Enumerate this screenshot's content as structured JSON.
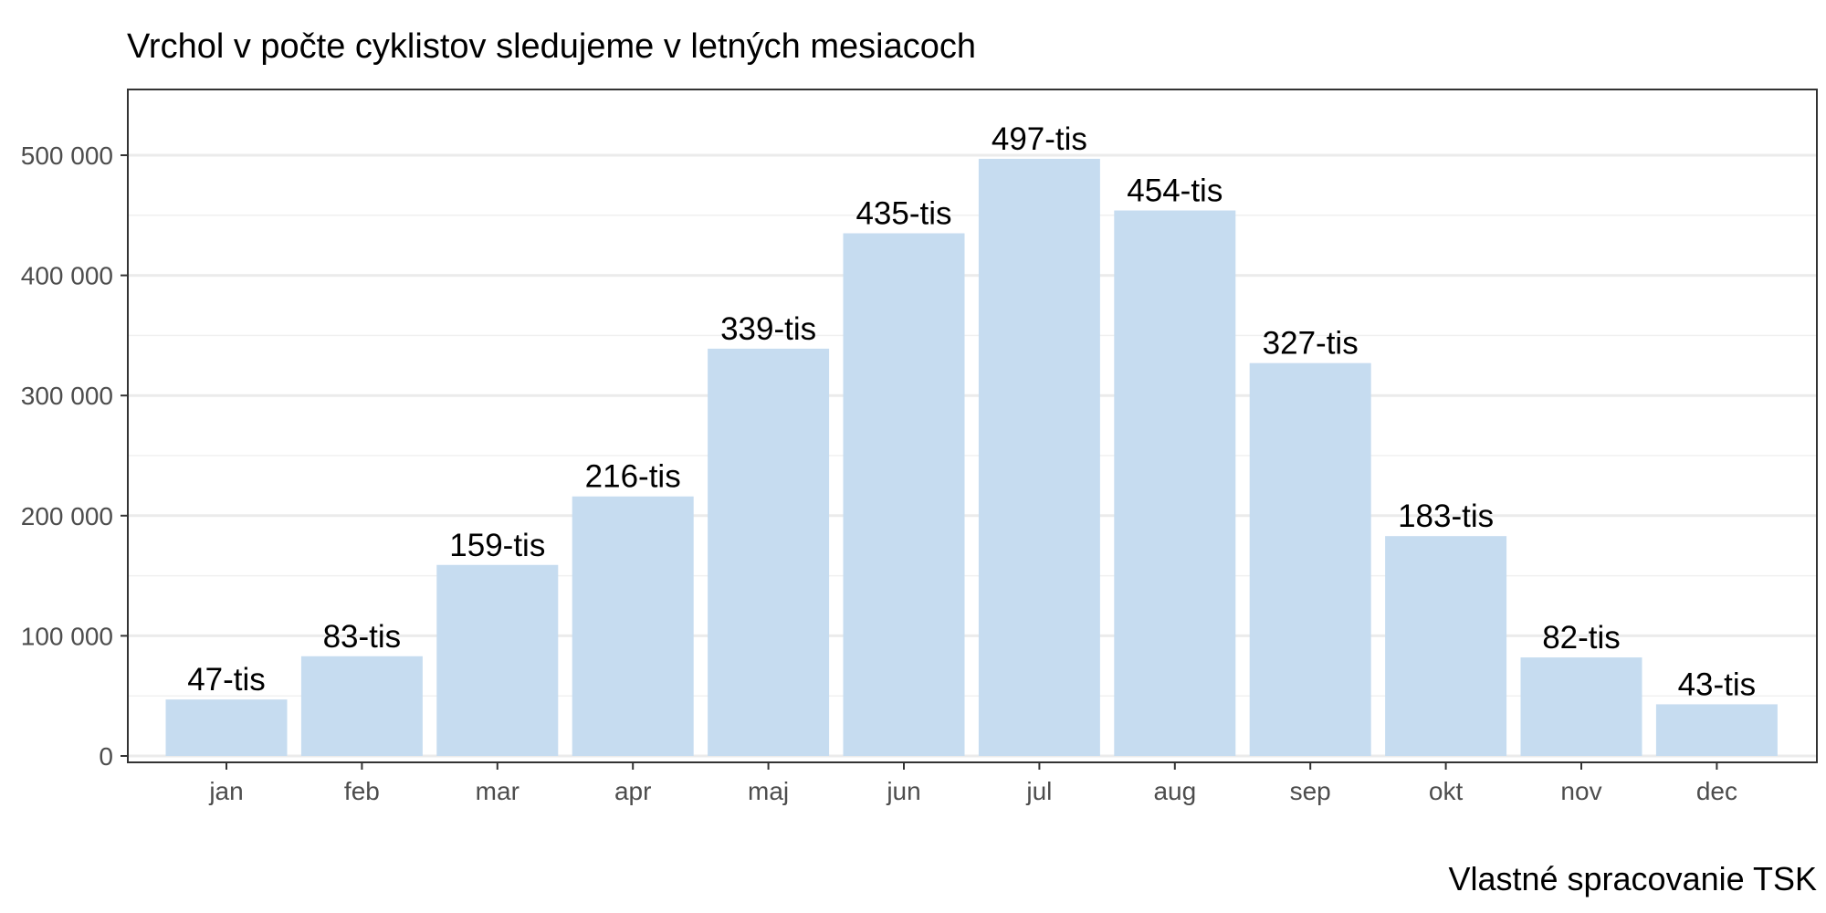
{
  "chart_data": {
    "type": "bar",
    "title": "Vrchol v počte cyklistov sledujeme v letných mesiacoch",
    "caption": "Vlastné spracovanie TSK",
    "xlabel": "",
    "ylabel": "",
    "categories": [
      "jan",
      "feb",
      "mar",
      "apr",
      "maj",
      "jun",
      "jul",
      "aug",
      "sep",
      "okt",
      "nov",
      "dec"
    ],
    "values": [
      47000,
      83000,
      159000,
      216000,
      339000,
      435000,
      497000,
      454000,
      327000,
      183000,
      82000,
      43000
    ],
    "data_labels": [
      "47-tis",
      "83-tis",
      "159-tis",
      "216-tis",
      "339-tis",
      "435-tis",
      "497-tis",
      "454-tis",
      "327-tis",
      "183-tis",
      "82-tis",
      "43-tis"
    ],
    "ylim": [
      0,
      500000
    ],
    "yticks": [
      0,
      100000,
      200000,
      300000,
      400000,
      500000
    ],
    "ytick_labels": [
      "0",
      "100 000",
      "200 000",
      "300 000",
      "400 000",
      "500 000"
    ],
    "grid": true,
    "bar_color": "#c6dcf0",
    "legend": "none"
  }
}
